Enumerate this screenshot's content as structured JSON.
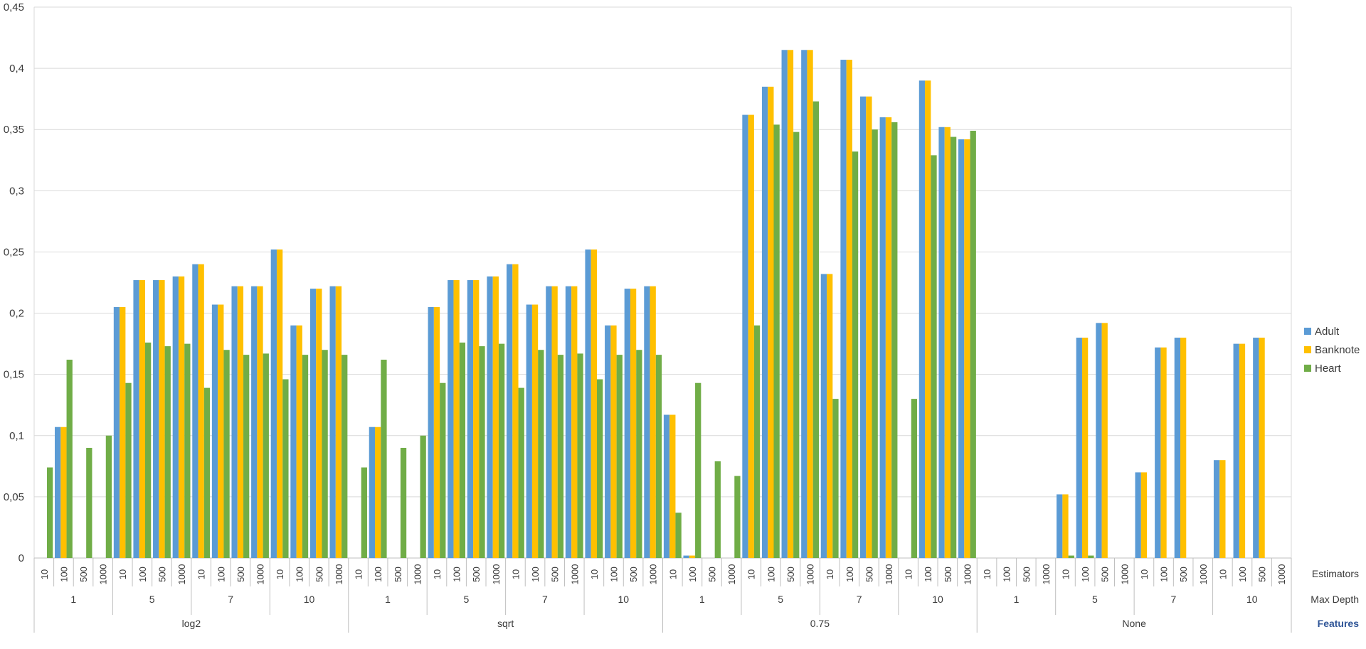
{
  "colors": {
    "Adult": "#5b9bd5",
    "Banknote": "#ffc000",
    "Heart": "#70ad47"
  },
  "chart_data": {
    "type": "bar",
    "ylim": [
      0,
      0.45
    ],
    "ytick_labels": [
      "0",
      "0,05",
      "0,1",
      "0,15",
      "0,2",
      "0,25",
      "0,3",
      "0,35",
      "0,4",
      "0,45"
    ],
    "grid": true,
    "legend_position": "right",
    "row_labels": [
      "Estimators",
      "Max Depth",
      "Features"
    ],
    "features": [
      "log2",
      "sqrt",
      "0.75",
      "None"
    ],
    "max_depths": [
      "1",
      "5",
      "7",
      "10"
    ],
    "estimators": [
      "10",
      "100",
      "500",
      "1000"
    ],
    "series": [
      {
        "name": "Adult",
        "values": [
          0,
          0.107,
          0,
          0,
          0.205,
          0.227,
          0.227,
          0.23,
          0.24,
          0.207,
          0.222,
          0.222,
          0.252,
          0.19,
          0.22,
          0.222,
          0,
          0.107,
          0,
          0,
          0.205,
          0.227,
          0.227,
          0.23,
          0.24,
          0.207,
          0.222,
          0.222,
          0.252,
          0.19,
          0.22,
          0.222,
          0.117,
          0.002,
          0,
          0,
          0.362,
          0.385,
          0.415,
          0.415,
          0.232,
          0.407,
          0.377,
          0.36,
          0,
          0.39,
          0.352,
          0.342,
          0,
          0,
          0,
          0,
          0.052,
          0.18,
          0.192,
          0,
          0.07,
          0.172,
          0.18,
          0,
          0.08,
          0.175,
          0.18,
          0
        ]
      },
      {
        "name": "Banknote",
        "values": [
          0,
          0.107,
          0,
          0,
          0.205,
          0.227,
          0.227,
          0.23,
          0.24,
          0.207,
          0.222,
          0.222,
          0.252,
          0.19,
          0.22,
          0.222,
          0,
          0.107,
          0,
          0,
          0.205,
          0.227,
          0.227,
          0.23,
          0.24,
          0.207,
          0.222,
          0.222,
          0.252,
          0.19,
          0.22,
          0.222,
          0.117,
          0.002,
          0,
          0,
          0.362,
          0.385,
          0.415,
          0.415,
          0.232,
          0.407,
          0.377,
          0.36,
          0,
          0.39,
          0.352,
          0.342,
          0,
          0,
          0,
          0,
          0.052,
          0.18,
          0.192,
          0,
          0.07,
          0.172,
          0.18,
          0,
          0.08,
          0.175,
          0.18,
          0
        ]
      },
      {
        "name": "Heart",
        "values": [
          0.074,
          0.162,
          0.09,
          0.1,
          0.143,
          0.176,
          0.173,
          0.175,
          0.139,
          0.17,
          0.166,
          0.167,
          0.146,
          0.166,
          0.17,
          0.166,
          0.074,
          0.162,
          0.09,
          0.1,
          0.143,
          0.176,
          0.173,
          0.175,
          0.139,
          0.17,
          0.166,
          0.167,
          0.146,
          0.166,
          0.17,
          0.166,
          0.037,
          0.143,
          0.079,
          0.067,
          0.19,
          0.354,
          0.348,
          0.373,
          0.13,
          0.332,
          0.35,
          0.356,
          0.13,
          0.329,
          0.344,
          0.349,
          0,
          0,
          0,
          0,
          0.002,
          0.002,
          0,
          0,
          0,
          0,
          0,
          0,
          0,
          0,
          0,
          0
        ]
      }
    ]
  }
}
